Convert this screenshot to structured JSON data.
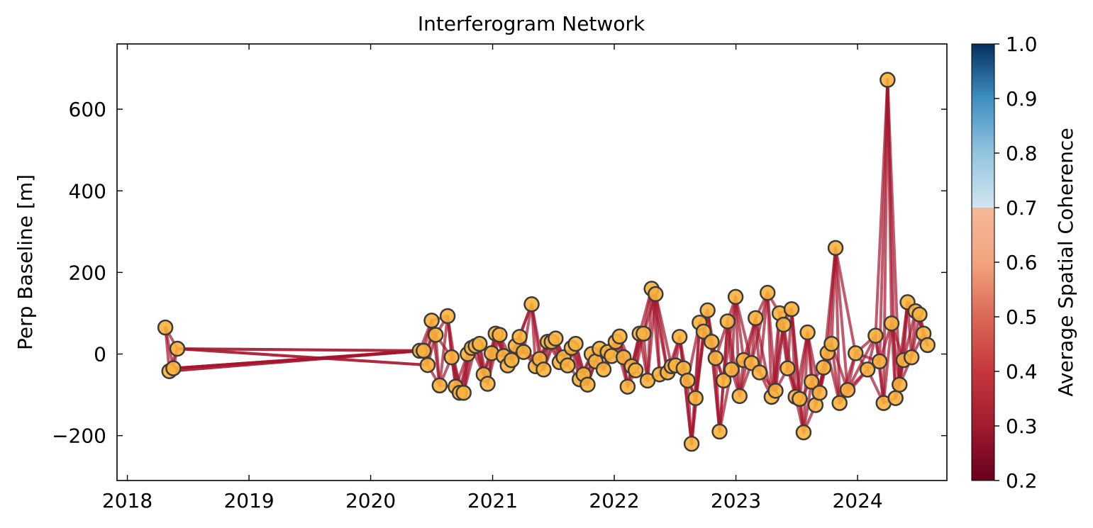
{
  "chart_data": {
    "type": "scatter",
    "title": "Interferogram Network",
    "xlabel": "",
    "ylabel": "Perp Baseline [m]",
    "xlim": [
      "2017-12-01",
      "2024-09-25"
    ],
    "ylim": [
      -310,
      760
    ],
    "x_ticks": [
      "2018",
      "2019",
      "2020",
      "2021",
      "2022",
      "2023",
      "2024"
    ],
    "y_ticks": [
      -200,
      0,
      200,
      400,
      600
    ],
    "y_tick_labels": [
      "−200",
      "0",
      "200",
      "400",
      "600"
    ],
    "grid": false,
    "legend": "none",
    "colors": {
      "node_fill": "#f9b33d",
      "node_edge": "#3b3b3b",
      "edge_line": "#a5152d"
    },
    "colorbar": {
      "label": "Average Spatial Coherence",
      "range": [
        0.2,
        1.0
      ],
      "ticks": [
        "0.2",
        "0.3",
        "0.4",
        "0.5",
        "0.6",
        "0.7",
        "0.8",
        "0.9",
        "1.0"
      ],
      "colormap": "RdBu",
      "display_cutoff": 0.7
    },
    "acquisitions": [
      {
        "date": "2018-04-25",
        "bperp": 65
      },
      {
        "date": "2018-05-07",
        "bperp": -42
      },
      {
        "date": "2018-05-19",
        "bperp": -35
      },
      {
        "date": "2018-05-31",
        "bperp": 13
      },
      {
        "date": "2020-05-27",
        "bperp": 8
      },
      {
        "date": "2020-06-08",
        "bperp": 8
      },
      {
        "date": "2020-06-20",
        "bperp": -27
      },
      {
        "date": "2020-07-02",
        "bperp": 82
      },
      {
        "date": "2020-07-14",
        "bperp": 47
      },
      {
        "date": "2020-07-26",
        "bperp": -77
      },
      {
        "date": "2020-08-19",
        "bperp": 93
      },
      {
        "date": "2020-08-31",
        "bperp": -8
      },
      {
        "date": "2020-09-12",
        "bperp": -80
      },
      {
        "date": "2020-09-24",
        "bperp": -95
      },
      {
        "date": "2020-10-06",
        "bperp": -95
      },
      {
        "date": "2020-10-18",
        "bperp": 0
      },
      {
        "date": "2020-10-30",
        "bperp": 15
      },
      {
        "date": "2020-11-11",
        "bperp": 20
      },
      {
        "date": "2020-11-23",
        "bperp": 25
      },
      {
        "date": "2020-12-05",
        "bperp": -50
      },
      {
        "date": "2020-12-17",
        "bperp": -73
      },
      {
        "date": "2020-12-29",
        "bperp": 2
      },
      {
        "date": "2021-01-10",
        "bperp": 50
      },
      {
        "date": "2021-01-22",
        "bperp": 47
      },
      {
        "date": "2021-02-03",
        "bperp": -5
      },
      {
        "date": "2021-02-15",
        "bperp": -28
      },
      {
        "date": "2021-02-27",
        "bperp": -15
      },
      {
        "date": "2021-03-11",
        "bperp": 20
      },
      {
        "date": "2021-03-23",
        "bperp": 42
      },
      {
        "date": "2021-04-04",
        "bperp": 5
      },
      {
        "date": "2021-04-28",
        "bperp": 122
      },
      {
        "date": "2021-05-10",
        "bperp": -30
      },
      {
        "date": "2021-05-22",
        "bperp": -12
      },
      {
        "date": "2021-06-03",
        "bperp": -38
      },
      {
        "date": "2021-06-15",
        "bperp": 30
      },
      {
        "date": "2021-06-27",
        "bperp": 30
      },
      {
        "date": "2021-07-09",
        "bperp": 38
      },
      {
        "date": "2021-07-21",
        "bperp": -20
      },
      {
        "date": "2021-08-02",
        "bperp": -8
      },
      {
        "date": "2021-08-14",
        "bperp": -28
      },
      {
        "date": "2021-08-26",
        "bperp": 15
      },
      {
        "date": "2021-09-07",
        "bperp": 25
      },
      {
        "date": "2021-09-19",
        "bperp": -62
      },
      {
        "date": "2021-10-01",
        "bperp": -50
      },
      {
        "date": "2021-10-13",
        "bperp": -75
      },
      {
        "date": "2021-10-25",
        "bperp": 0
      },
      {
        "date": "2021-11-06",
        "bperp": -18
      },
      {
        "date": "2021-11-18",
        "bperp": 13
      },
      {
        "date": "2021-11-30",
        "bperp": -38
      },
      {
        "date": "2021-12-12",
        "bperp": 5
      },
      {
        "date": "2021-12-24",
        "bperp": -5
      },
      {
        "date": "2022-01-05",
        "bperp": 30
      },
      {
        "date": "2022-01-17",
        "bperp": 43
      },
      {
        "date": "2022-01-29",
        "bperp": -8
      },
      {
        "date": "2022-02-10",
        "bperp": -80
      },
      {
        "date": "2022-02-22",
        "bperp": -30
      },
      {
        "date": "2022-03-06",
        "bperp": -40
      },
      {
        "date": "2022-03-18",
        "bperp": 50
      },
      {
        "date": "2022-03-30",
        "bperp": 50
      },
      {
        "date": "2022-04-11",
        "bperp": -65
      },
      {
        "date": "2022-04-23",
        "bperp": 160
      },
      {
        "date": "2022-05-05",
        "bperp": 147
      },
      {
        "date": "2022-05-17",
        "bperp": -50
      },
      {
        "date": "2022-06-10",
        "bperp": -45
      },
      {
        "date": "2022-06-22",
        "bperp": -30
      },
      {
        "date": "2022-07-04",
        "bperp": -28
      },
      {
        "date": "2022-07-16",
        "bperp": 42
      },
      {
        "date": "2022-07-28",
        "bperp": -35
      },
      {
        "date": "2022-08-09",
        "bperp": -65
      },
      {
        "date": "2022-08-21",
        "bperp": -220
      },
      {
        "date": "2022-09-02",
        "bperp": -108
      },
      {
        "date": "2022-09-14",
        "bperp": 77
      },
      {
        "date": "2022-09-26",
        "bperp": 55
      },
      {
        "date": "2022-10-08",
        "bperp": 107
      },
      {
        "date": "2022-10-20",
        "bperp": 30
      },
      {
        "date": "2022-11-01",
        "bperp": -10
      },
      {
        "date": "2022-11-13",
        "bperp": -190
      },
      {
        "date": "2022-11-25",
        "bperp": -65
      },
      {
        "date": "2022-12-07",
        "bperp": 80
      },
      {
        "date": "2022-12-19",
        "bperp": -38
      },
      {
        "date": "2022-12-31",
        "bperp": 140
      },
      {
        "date": "2023-01-12",
        "bperp": -103
      },
      {
        "date": "2023-01-24",
        "bperp": -15
      },
      {
        "date": "2023-02-17",
        "bperp": -22
      },
      {
        "date": "2023-03-01",
        "bperp": 88
      },
      {
        "date": "2023-03-13",
        "bperp": -45
      },
      {
        "date": "2023-04-06",
        "bperp": 150
      },
      {
        "date": "2023-04-18",
        "bperp": -105
      },
      {
        "date": "2023-04-30",
        "bperp": -90
      },
      {
        "date": "2023-05-12",
        "bperp": 100
      },
      {
        "date": "2023-05-24",
        "bperp": 72
      },
      {
        "date": "2023-06-05",
        "bperp": -35
      },
      {
        "date": "2023-06-17",
        "bperp": 110
      },
      {
        "date": "2023-06-29",
        "bperp": -105
      },
      {
        "date": "2023-07-11",
        "bperp": -110
      },
      {
        "date": "2023-07-23",
        "bperp": -192
      },
      {
        "date": "2023-08-04",
        "bperp": 53
      },
      {
        "date": "2023-08-16",
        "bperp": -68
      },
      {
        "date": "2023-08-28",
        "bperp": -125
      },
      {
        "date": "2023-09-09",
        "bperp": -95
      },
      {
        "date": "2023-09-21",
        "bperp": -33
      },
      {
        "date": "2023-10-03",
        "bperp": 3
      },
      {
        "date": "2023-10-15",
        "bperp": 25
      },
      {
        "date": "2023-10-27",
        "bperp": 260
      },
      {
        "date": "2023-11-08",
        "bperp": -120
      },
      {
        "date": "2023-12-02",
        "bperp": -88
      },
      {
        "date": "2023-12-26",
        "bperp": 2
      },
      {
        "date": "2024-01-31",
        "bperp": -38
      },
      {
        "date": "2024-02-24",
        "bperp": 45
      },
      {
        "date": "2024-03-07",
        "bperp": -18
      },
      {
        "date": "2024-03-19",
        "bperp": -120
      },
      {
        "date": "2024-03-31",
        "bperp": 672
      },
      {
        "date": "2024-04-12",
        "bperp": 75
      },
      {
        "date": "2024-04-24",
        "bperp": -108
      },
      {
        "date": "2024-05-06",
        "bperp": -75
      },
      {
        "date": "2024-05-18",
        "bperp": -15
      },
      {
        "date": "2024-05-30",
        "bperp": 127
      },
      {
        "date": "2024-06-11",
        "bperp": -8
      },
      {
        "date": "2024-06-23",
        "bperp": 105
      },
      {
        "date": "2024-07-05",
        "bperp": 97
      },
      {
        "date": "2024-07-17",
        "bperp": 50
      },
      {
        "date": "2024-07-29",
        "bperp": 22
      }
    ]
  }
}
